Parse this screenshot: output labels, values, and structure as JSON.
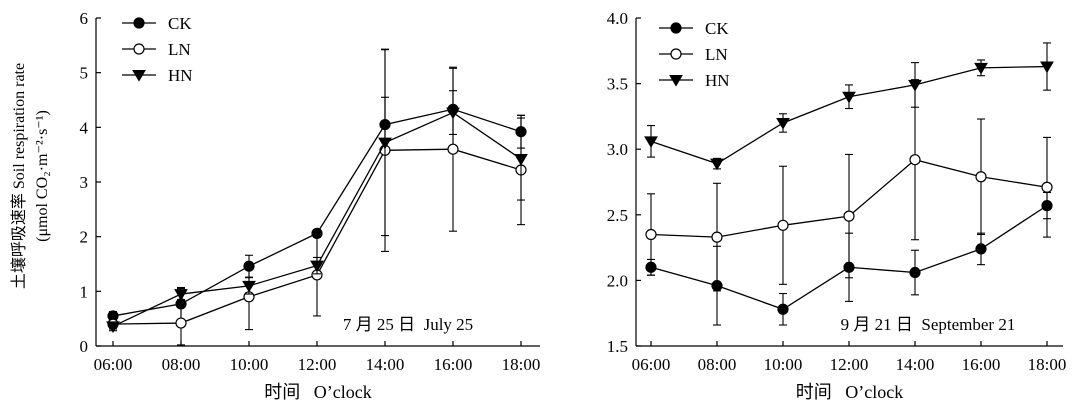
{
  "chart_data": [
    {
      "type": "line",
      "annotation": "7 月 25 日  July 25",
      "xlabel": "时间   O’clock",
      "ylabel_cn": "土壤呼吸速率 Soil respiration rate",
      "ylabel_unit": "(μmol CO₂·m⁻²·s⁻¹)",
      "categories": [
        "06:00",
        "08:00",
        "10:00",
        "12:00",
        "14:00",
        "16:00",
        "18:00"
      ],
      "ylim": [
        0,
        6
      ],
      "yticks": [
        "0",
        "1",
        "2",
        "3",
        "4",
        "5",
        "6"
      ],
      "legend_position": "top-left",
      "series": [
        {
          "name": "CK",
          "marker": "filled-circle",
          "values": [
            0.55,
            0.77,
            1.46,
            2.06,
            4.05,
            4.33,
            3.92
          ],
          "errors": [
            0.08,
            0.3,
            0.2,
            0.07,
            0.5,
            0.75,
            0.3
          ]
        },
        {
          "name": "LN",
          "marker": "open-circle",
          "values": [
            0.4,
            0.42,
            0.9,
            1.3,
            3.58,
            3.6,
            3.22
          ],
          "errors": [
            0.12,
            0.4,
            0.6,
            0.75,
            1.85,
            1.5,
            1.0
          ]
        },
        {
          "name": "HN",
          "marker": "filled-triangle-down",
          "values": [
            0.36,
            0.95,
            1.1,
            1.47,
            3.72,
            4.27,
            3.42
          ],
          "errors": [
            0.05,
            0.1,
            0.15,
            0.15,
            1.7,
            0.4,
            0.75
          ]
        }
      ]
    },
    {
      "type": "line",
      "annotation": "9 月 21 日  September 21",
      "xlabel": "时间   O’clock",
      "categories": [
        "06:00",
        "08:00",
        "10:00",
        "12:00",
        "14:00",
        "16:00",
        "18:00"
      ],
      "ylim": [
        1.5,
        4.0
      ],
      "yticks": [
        "1.5",
        "2.0",
        "2.5",
        "3.0",
        "3.5",
        "4.0"
      ],
      "legend_position": "top-left",
      "series": [
        {
          "name": "CK",
          "marker": "filled-circle",
          "values": [
            2.1,
            1.96,
            1.78,
            2.1,
            2.06,
            2.24,
            2.57
          ],
          "errors": [
            0.06,
            0.3,
            0.12,
            0.26,
            0.17,
            0.12,
            0.1
          ]
        },
        {
          "name": "LN",
          "marker": "open-circle",
          "values": [
            2.35,
            2.33,
            2.42,
            2.49,
            2.92,
            2.79,
            2.71
          ],
          "errors": [
            0.31,
            0.41,
            0.45,
            0.47,
            0.61,
            0.44,
            0.38
          ]
        },
        {
          "name": "HN",
          "marker": "filled-triangle-down",
          "values": [
            3.06,
            2.89,
            3.2,
            3.4,
            3.49,
            3.62,
            3.63
          ],
          "errors": [
            0.12,
            0.04,
            0.07,
            0.09,
            0.17,
            0.06,
            0.18
          ]
        }
      ]
    }
  ]
}
